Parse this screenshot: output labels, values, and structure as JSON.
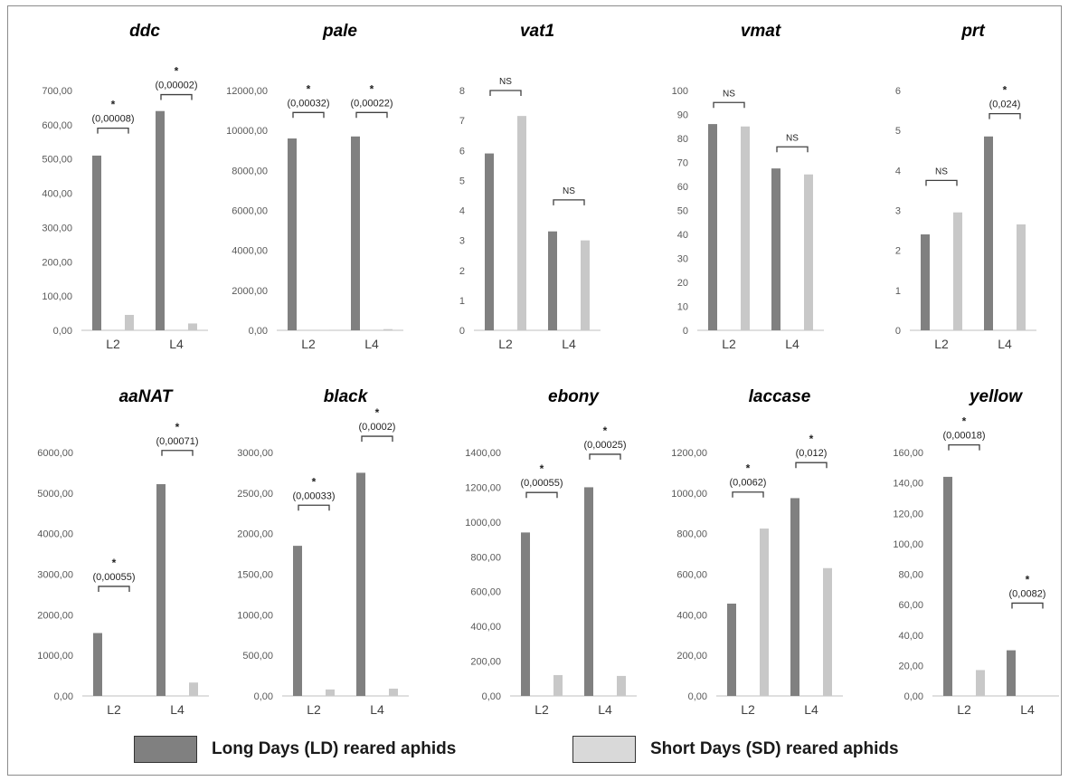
{
  "colors": {
    "ld": "#808080",
    "sd": "#c8c8c8",
    "axis": "#bfbfbf",
    "tick_text": "#595959",
    "bracket": "#404040"
  },
  "legend": {
    "ld_label": "Long Days (LD) reared aphids",
    "sd_label": "Short Days (SD) reared aphids"
  },
  "chart_data": [
    {
      "type": "bar",
      "title": "ddc",
      "categories": [
        "L2",
        "L4"
      ],
      "series": [
        {
          "name": "Long Days (LD) reared aphids",
          "values": [
            510,
            640
          ]
        },
        {
          "name": "Short Days (SD) reared aphids",
          "values": [
            45,
            20
          ]
        }
      ],
      "ylim": [
        0,
        700
      ],
      "yticks": [
        0,
        100,
        200,
        300,
        400,
        500,
        600,
        700
      ],
      "ytick_labels": [
        "0,00",
        "100,00",
        "200,00",
        "300,00",
        "400,00",
        "500,00",
        "600,00",
        "700,00"
      ],
      "annotations": [
        {
          "category": "L2",
          "star": "*",
          "p": "(0,00008)",
          "at": 590
        },
        {
          "category": "L4",
          "star": "*",
          "p": "(0,00002)",
          "at": 688
        }
      ]
    },
    {
      "type": "bar",
      "title": "pale",
      "categories": [
        "L2",
        "L4"
      ],
      "series": [
        {
          "name": "Long Days (LD) reared aphids",
          "values": [
            9600,
            9700
          ]
        },
        {
          "name": "Short Days (SD) reared aphids",
          "values": [
            20,
            60
          ]
        }
      ],
      "ylim": [
        0,
        12000
      ],
      "yticks": [
        0,
        2000,
        4000,
        6000,
        8000,
        10000,
        12000
      ],
      "ytick_labels": [
        "0,00",
        "2000,00",
        "4000,00",
        "6000,00",
        "8000,00",
        "10000,00",
        "12000,00"
      ],
      "annotations": [
        {
          "category": "L2",
          "star": "*",
          "p": "(0,00032)",
          "at": 10900
        },
        {
          "category": "L4",
          "star": "*",
          "p": "(0,00022)",
          "at": 10900
        }
      ]
    },
    {
      "type": "bar",
      "title": "vat1",
      "categories": [
        "L2",
        "L4"
      ],
      "series": [
        {
          "name": "Long Days (LD) reared aphids",
          "values": [
            5.9,
            3.3
          ]
        },
        {
          "name": "Short Days (SD) reared aphids",
          "values": [
            7.15,
            3.0
          ]
        }
      ],
      "ylim": [
        0,
        8
      ],
      "yticks": [
        0,
        1,
        2,
        3,
        4,
        5,
        6,
        7,
        8
      ],
      "ytick_labels": [
        "0",
        "1",
        "2",
        "3",
        "4",
        "5",
        "6",
        "7",
        "8"
      ],
      "annotations": [
        {
          "category": "L2",
          "star": "NS",
          "p": "",
          "at": 8.0
        },
        {
          "category": "L4",
          "star": "NS",
          "p": "",
          "at": 4.35
        }
      ]
    },
    {
      "type": "bar",
      "title": "vmat",
      "categories": [
        "L2",
        "L4"
      ],
      "series": [
        {
          "name": "Long Days (LD) reared aphids",
          "values": [
            86,
            67.5
          ]
        },
        {
          "name": "Short Days (SD) reared aphids",
          "values": [
            85,
            65
          ]
        }
      ],
      "ylim": [
        0,
        100
      ],
      "yticks": [
        0,
        10,
        20,
        30,
        40,
        50,
        60,
        70,
        80,
        90,
        100
      ],
      "ytick_labels": [
        "0",
        "10",
        "20",
        "30",
        "40",
        "50",
        "60",
        "70",
        "80",
        "90",
        "100"
      ],
      "annotations": [
        {
          "category": "L2",
          "star": "NS",
          "p": "",
          "at": 95
        },
        {
          "category": "L4",
          "star": "NS",
          "p": "",
          "at": 76.5
        }
      ]
    },
    {
      "type": "bar",
      "title": "prt",
      "categories": [
        "L2",
        "L4"
      ],
      "series": [
        {
          "name": "Long Days (LD) reared aphids",
          "values": [
            2.4,
            4.85
          ]
        },
        {
          "name": "Short Days (SD) reared aphids",
          "values": [
            2.95,
            2.65
          ]
        }
      ],
      "ylim": [
        0,
        6
      ],
      "yticks": [
        0,
        1,
        2,
        3,
        4,
        5,
        6
      ],
      "ytick_labels": [
        "0",
        "1",
        "2",
        "3",
        "4",
        "5",
        "6"
      ],
      "annotations": [
        {
          "category": "L2",
          "star": "NS",
          "p": "",
          "at": 3.75
        },
        {
          "category": "L4",
          "star": "*",
          "p": "(0,024)",
          "at": 5.42
        }
      ]
    },
    {
      "type": "bar",
      "title": "aaNAT",
      "categories": [
        "L2",
        "L4"
      ],
      "series": [
        {
          "name": "Long Days (LD) reared aphids",
          "values": [
            1550,
            5220
          ]
        },
        {
          "name": "Short Days (SD) reared aphids",
          "values": [
            0,
            330
          ]
        }
      ],
      "ylim": [
        0,
        6000
      ],
      "yticks": [
        0,
        1000,
        2000,
        3000,
        4000,
        5000,
        6000
      ],
      "ytick_labels": [
        "0,00",
        "1000,00",
        "2000,00",
        "3000,00",
        "4000,00",
        "5000,00",
        "6000,00"
      ],
      "annotations": [
        {
          "category": "L2",
          "star": "*",
          "p": "(0,00055)",
          "at": 2700
        },
        {
          "category": "L4",
          "star": "*",
          "p": "(0,00071)",
          "at": 6050
        }
      ]
    },
    {
      "type": "bar",
      "title": "black",
      "categories": [
        "L2",
        "L4"
      ],
      "series": [
        {
          "name": "Long Days (LD) reared aphids",
          "values": [
            1850,
            2750
          ]
        },
        {
          "name": "Short Days (SD) reared aphids",
          "values": [
            80,
            90
          ]
        }
      ],
      "ylim": [
        0,
        3000
      ],
      "yticks": [
        0,
        500,
        1000,
        1500,
        2000,
        2500,
        3000
      ],
      "ytick_labels": [
        "0,00",
        "500,00",
        "1000,00",
        "1500,00",
        "2000,00",
        "2500,00",
        "3000,00"
      ],
      "annotations": [
        {
          "category": "L2",
          "star": "*",
          "p": "(0,00033)",
          "at": 2350
        },
        {
          "category": "L4",
          "star": "*",
          "p": "(0,0002)",
          "at": 3200
        }
      ]
    },
    {
      "type": "bar",
      "title": "ebony",
      "categories": [
        "L2",
        "L4"
      ],
      "series": [
        {
          "name": "Long Days (LD) reared aphids",
          "values": [
            940,
            1200
          ]
        },
        {
          "name": "Short Days (SD) reared aphids",
          "values": [
            120,
            115
          ]
        }
      ],
      "ylim": [
        0,
        1400
      ],
      "yticks": [
        0,
        200,
        400,
        600,
        800,
        1000,
        1200,
        1400
      ],
      "ytick_labels": [
        "0,00",
        "200,00",
        "400,00",
        "600,00",
        "800,00",
        "1000,00",
        "1200,00",
        "1400,00"
      ],
      "annotations": [
        {
          "category": "L2",
          "star": "*",
          "p": "(0,00055)",
          "at": 1170
        },
        {
          "category": "L4",
          "star": "*",
          "p": "(0,00025)",
          "at": 1390
        }
      ]
    },
    {
      "type": "bar",
      "title": "laccase",
      "categories": [
        "L2",
        "L4"
      ],
      "series": [
        {
          "name": "Long Days (LD) reared aphids",
          "values": [
            455,
            975
          ]
        },
        {
          "name": "Short Days (SD) reared aphids",
          "values": [
            825,
            630
          ]
        }
      ],
      "ylim": [
        0,
        1200
      ],
      "yticks": [
        0,
        200,
        400,
        600,
        800,
        1000,
        1200
      ],
      "ytick_labels": [
        "0,00",
        "200,00",
        "400,00",
        "600,00",
        "800,00",
        "1000,00",
        "1200,00"
      ],
      "annotations": [
        {
          "category": "L2",
          "star": "*",
          "p": "(0,0062)",
          "at": 1005
        },
        {
          "category": "L4",
          "star": "*",
          "p": "(0,012)",
          "at": 1150
        }
      ]
    },
    {
      "type": "bar",
      "title": "yellow",
      "categories": [
        "L2",
        "L4"
      ],
      "series": [
        {
          "name": "Long Days (LD) reared aphids",
          "values": [
            144,
            30
          ]
        },
        {
          "name": "Short Days (SD) reared aphids",
          "values": [
            17,
            0
          ]
        }
      ],
      "ylim": [
        0,
        160
      ],
      "yticks": [
        0,
        20,
        40,
        60,
        80,
        100,
        120,
        140,
        160
      ],
      "ytick_labels": [
        "0,00",
        "20,00",
        "40,00",
        "60,00",
        "80,00",
        "100,00",
        "120,00",
        "140,00",
        "160,00"
      ],
      "annotations": [
        {
          "category": "L2",
          "star": "*",
          "p": "(0,00018)",
          "at": 165
        },
        {
          "category": "L4",
          "star": "*",
          "p": "(0,0082)",
          "at": 61
        }
      ]
    }
  ]
}
